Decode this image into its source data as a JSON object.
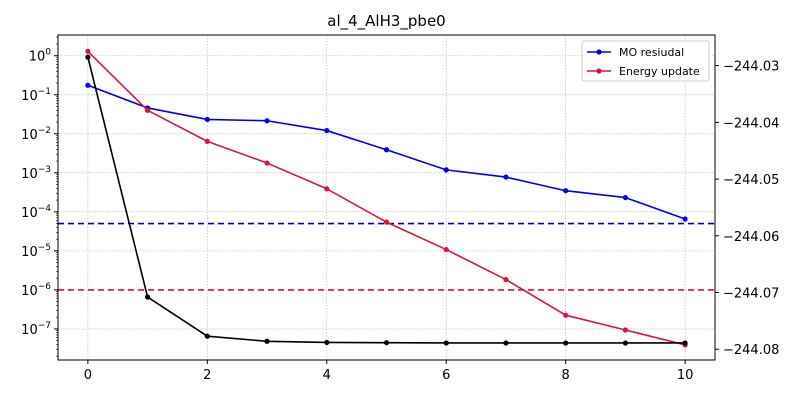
{
  "chart_data": {
    "type": "line",
    "title": "al_4_AlH3_pbe0",
    "x": [
      0,
      1,
      2,
      3,
      4,
      5,
      6,
      7,
      8,
      9,
      10
    ],
    "xlim": [
      -0.5,
      10.5
    ],
    "x_ticks": [
      0,
      2,
      4,
      6,
      8,
      10
    ],
    "y_left": {
      "scale": "log",
      "lim": [
        1.6e-08,
        3.4
      ],
      "ticks": [
        1,
        0.1,
        0.01,
        0.001,
        0.0001,
        1e-05,
        1e-06,
        1e-07
      ],
      "tick_labels": [
        {
          "base": "10",
          "exp": "0"
        },
        {
          "base": "10",
          "exp": "−1"
        },
        {
          "base": "10",
          "exp": "−2"
        },
        {
          "base": "10",
          "exp": "−3"
        },
        {
          "base": "10",
          "exp": "−4"
        },
        {
          "base": "10",
          "exp": "−5"
        },
        {
          "base": "10",
          "exp": "−6"
        },
        {
          "base": "10",
          "exp": "−7"
        }
      ]
    },
    "y_right": {
      "scale": "linear",
      "lim": [
        -244.0819,
        -244.0246
      ],
      "ticks": [
        -244.03,
        -244.04,
        -244.05,
        -244.06,
        -244.07,
        -244.08
      ],
      "tick_labels": [
        "−244.03",
        "−244.04",
        "−244.05",
        "−244.06",
        "−244.07",
        "−244.08"
      ]
    },
    "series": [
      {
        "name": "MO resiudal",
        "axis": "left",
        "color": "#0000ee",
        "values": [
          0.175,
          0.046,
          0.0233,
          0.0216,
          0.0121,
          0.0039,
          0.00119,
          0.00078,
          0.000348,
          0.000232,
          6.55e-05
        ]
      },
      {
        "name": "Energy update",
        "axis": "left",
        "color": "#dc143c",
        "values": [
          1.3,
          0.04,
          0.0064,
          0.00178,
          0.00039,
          5.45e-05,
          1.08e-05,
          1.84e-06,
          2.25e-07,
          9.4e-08,
          3.9e-08
        ]
      },
      {
        "axis": "right",
        "color": "#000000",
        "values": [
          -244.0285,
          -244.0708,
          -244.0777,
          -244.0786,
          -244.0788,
          -244.07885,
          -244.0789,
          -244.0789,
          -244.0789,
          -244.0789,
          -244.0789
        ]
      }
    ],
    "reference_lines": [
      {
        "axis": "left",
        "value": 5e-05,
        "color": "#0000cc",
        "style": "dashed"
      },
      {
        "axis": "left",
        "value": 1e-06,
        "color": "#dc143c",
        "style": "dashed"
      }
    ],
    "grid": true,
    "legend_placement": "top-right"
  }
}
